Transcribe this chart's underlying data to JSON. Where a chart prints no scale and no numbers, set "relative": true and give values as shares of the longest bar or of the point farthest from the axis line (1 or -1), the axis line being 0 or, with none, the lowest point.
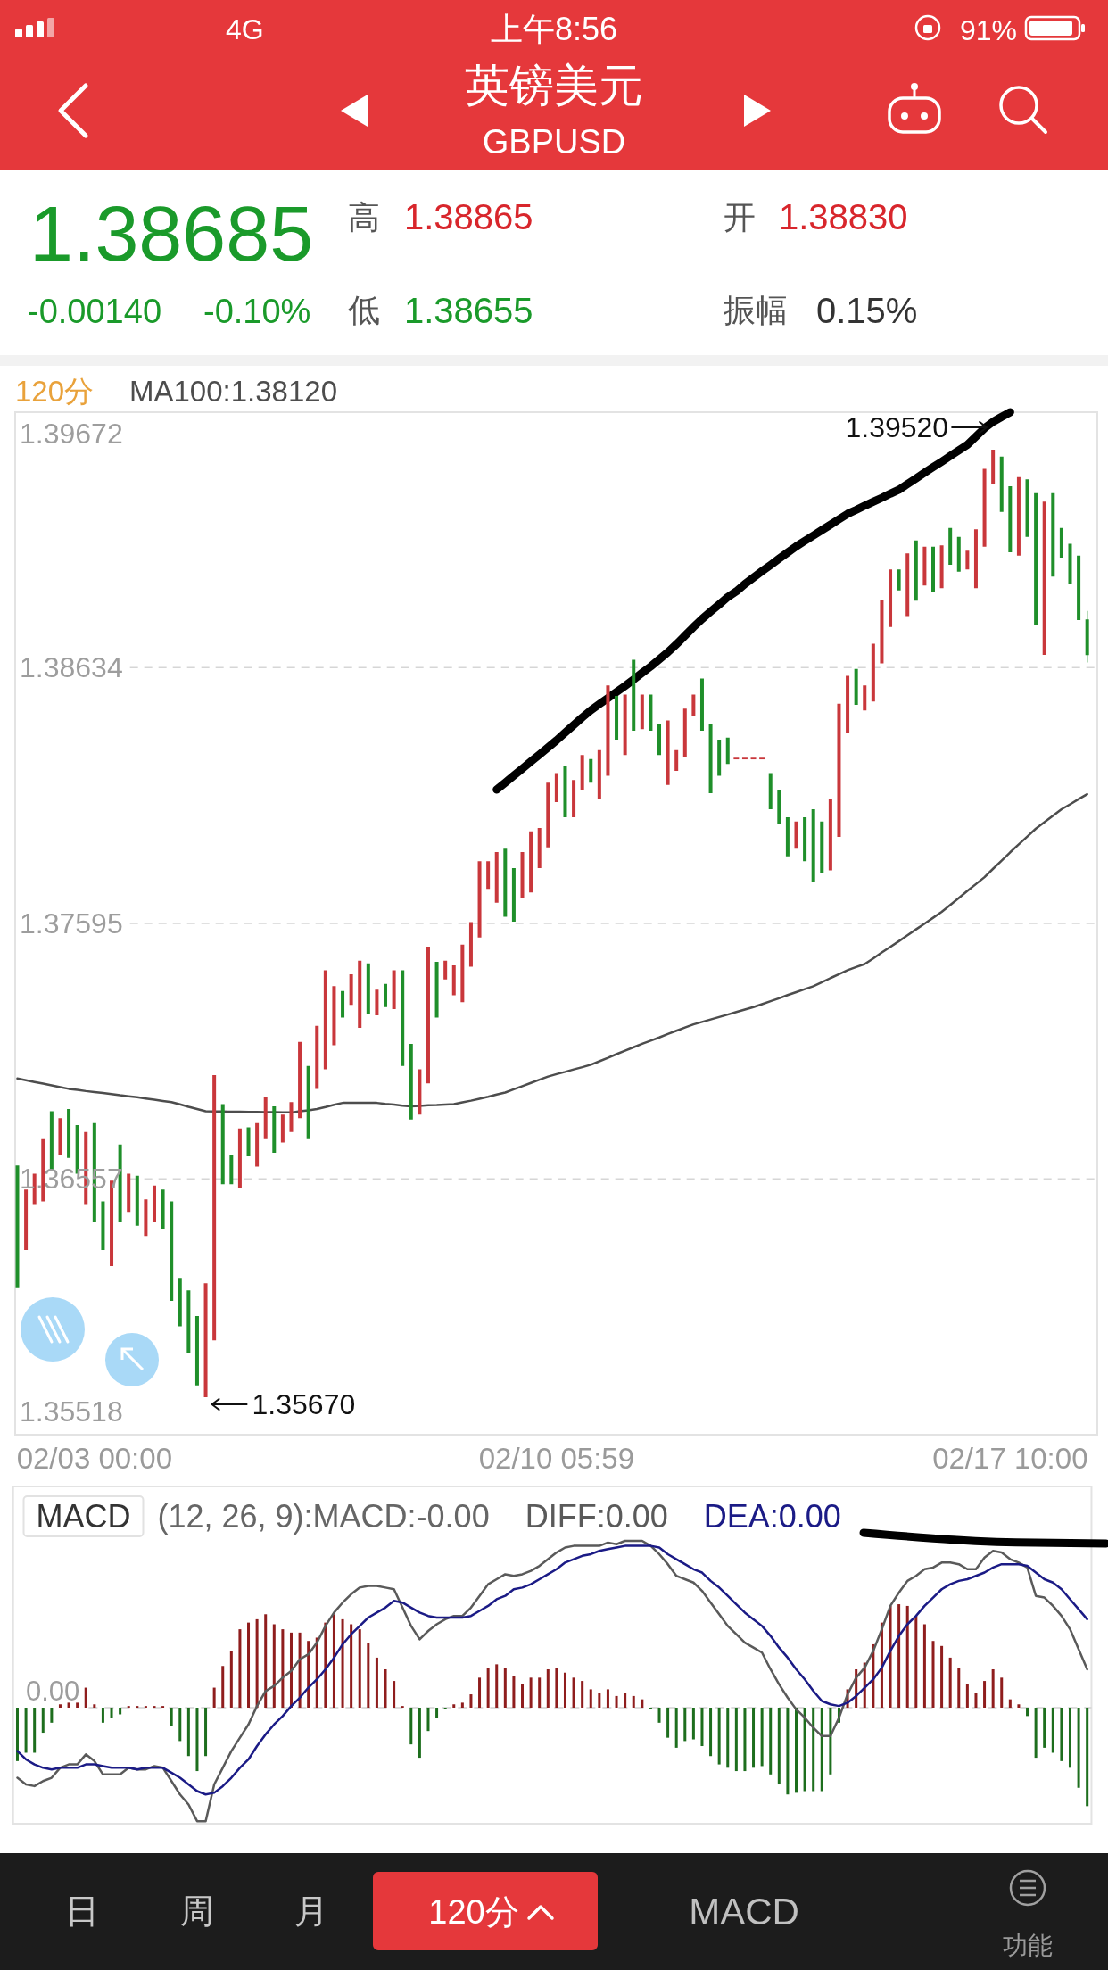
{
  "chart_data": [
    {
      "type": "candlestick",
      "title": "英镑美元",
      "subtitle": "GBPUSD",
      "categories": [
        null,
        null,
        null,
        null,
        null,
        null,
        null,
        null,
        null,
        "02/03 00:00",
        null,
        null,
        null,
        null,
        null,
        null,
        null,
        null,
        null,
        null,
        null,
        null,
        null,
        null,
        null,
        null,
        null,
        null,
        null,
        null,
        null,
        null,
        null,
        null,
        null,
        null,
        null,
        null,
        null,
        null,
        null,
        null,
        null,
        null,
        null,
        null,
        null,
        null,
        null,
        null,
        null,
        null,
        null,
        null,
        null,
        null,
        null,
        null,
        null,
        null,
        null,
        null,
        null,
        "02/10 05:59",
        null,
        null,
        null,
        null,
        null,
        null,
        null,
        null,
        null,
        null,
        null,
        null,
        null,
        null,
        null,
        null,
        null,
        null,
        null,
        null,
        null,
        null,
        null,
        null,
        null,
        null,
        null,
        null,
        null,
        null,
        null,
        null,
        null,
        null,
        null,
        null,
        null,
        null,
        null,
        null,
        null,
        null,
        null,
        null,
        null,
        null,
        null,
        null,
        null,
        null,
        null,
        null,
        "02/17 10:00",
        null,
        null,
        null,
        null,
        null,
        null,
        null,
        null,
        null
      ],
      "ohlc": [
        [
          1.36612,
          1.36612,
          1.36113,
          1.36113
        ],
        [
          1.36268,
          1.36514,
          1.36268,
          1.36514
        ],
        [
          1.36451,
          1.36578,
          1.36451,
          1.36578
        ],
        [
          1.36466,
          1.36719,
          1.36466,
          1.36719
        ],
        [
          1.36832,
          1.36832,
          1.36587,
          1.36587
        ],
        [
          1.36655,
          1.36804,
          1.36655,
          1.36804
        ],
        [
          1.36841,
          1.36841,
          1.36643,
          1.36643
        ],
        [
          1.36776,
          1.36776,
          1.36578,
          1.36578
        ],
        [
          1.36451,
          1.36748,
          1.36451,
          1.36748
        ],
        [
          1.36784,
          1.36784,
          1.36381,
          1.36381
        ],
        [
          1.36466,
          1.36466,
          1.36268,
          1.36268
        ],
        [
          1.36203,
          1.3655,
          1.36203,
          1.3655
        ],
        [
          1.36697,
          1.36697,
          1.36381,
          1.36381
        ],
        [
          1.36423,
          1.36578,
          1.36423,
          1.36578
        ],
        [
          1.3657,
          1.3657,
          1.36367,
          1.36367
        ],
        [
          1.36325,
          1.36474,
          1.36325,
          1.36474
        ],
        [
          1.36381,
          1.3653,
          1.36381,
          1.3653
        ],
        [
          1.36514,
          1.36514,
          1.36353,
          1.36353
        ],
        [
          1.36466,
          1.36466,
          1.36062,
          1.36062
        ],
        [
          1.36155,
          1.36155,
          1.35958,
          1.35958
        ],
        [
          1.36104,
          1.36104,
          1.35851,
          1.35851
        ],
        [
          1.36,
          1.36,
          1.35718,
          1.35718
        ],
        [
          1.3567,
          1.36133,
          1.3567,
          1.36133
        ],
        [
          1.35901,
          1.36979,
          1.35901,
          1.36979
        ],
        [
          1.36861,
          1.36861,
          1.36536,
          1.36536
        ],
        [
          1.36655,
          1.36655,
          1.36536,
          1.36536
        ],
        [
          1.36522,
          1.36762,
          1.36522,
          1.36762
        ],
        [
          1.36767,
          1.36767,
          1.36649,
          1.36649
        ],
        [
          1.36607,
          1.36784,
          1.36607,
          1.36784
        ],
        [
          1.36719,
          1.36889,
          1.36719,
          1.36889
        ],
        [
          1.36852,
          1.36852,
          1.36663,
          1.36663
        ],
        [
          1.36705,
          1.36818,
          1.36705,
          1.36818
        ],
        [
          1.36748,
          1.36869,
          1.36748,
          1.36869
        ],
        [
          1.36804,
          1.37114,
          1.36804,
          1.37114
        ],
        [
          1.37016,
          1.37016,
          1.36719,
          1.36719
        ],
        [
          1.36923,
          1.37179,
          1.36923,
          1.37179
        ],
        [
          1.37002,
          1.37405,
          1.37002,
          1.37405
        ],
        [
          1.371,
          1.3734,
          1.371,
          1.3734
        ],
        [
          1.3732,
          1.3732,
          1.37213,
          1.37213
        ],
        [
          1.37264,
          1.37388,
          1.37264,
          1.37388
        ],
        [
          1.37171,
          1.37444,
          1.37171,
          1.37444
        ],
        [
          1.37433,
          1.37433,
          1.37227,
          1.37227
        ],
        [
          1.37222,
          1.37326,
          1.37222,
          1.37326
        ],
        [
          1.37349,
          1.37349,
          1.37255,
          1.37255
        ],
        [
          1.37247,
          1.37405,
          1.37247,
          1.37405
        ],
        [
          1.37405,
          1.37405,
          1.37016,
          1.37016
        ],
        [
          1.37106,
          1.37106,
          1.36798,
          1.36798
        ],
        [
          1.36818,
          1.37002,
          1.36818,
          1.37002
        ],
        [
          1.36945,
          1.37501,
          1.36945,
          1.37501
        ],
        [
          1.37439,
          1.37439,
          1.37213,
          1.37213
        ],
        [
          1.37368,
          1.37444,
          1.37368,
          1.37444
        ],
        [
          1.37303,
          1.37425,
          1.37303,
          1.37425
        ],
        [
          1.37275,
          1.37509,
          1.37275,
          1.37509
        ],
        [
          1.37419,
          1.376,
          1.37419,
          1.376
        ],
        [
          1.37538,
          1.37848,
          1.37538,
          1.37848
        ],
        [
          1.37735,
          1.37848,
          1.37735,
          1.37848
        ],
        [
          1.37679,
          1.37885,
          1.37679,
          1.37885
        ],
        [
          1.37899,
          1.37899,
          1.37622,
          1.37622
        ],
        [
          1.3782,
          1.3782,
          1.37602,
          1.37602
        ],
        [
          1.37698,
          1.37885,
          1.37698,
          1.37885
        ],
        [
          1.37721,
          1.37969,
          1.37721,
          1.37969
        ],
        [
          1.3782,
          1.37983,
          1.3782,
          1.37983
        ],
        [
          1.37904,
          1.38167,
          1.37904,
          1.38167
        ],
        [
          1.38088,
          1.38206,
          1.38088,
          1.38206
        ],
        [
          1.38234,
          1.38234,
          1.38026,
          1.38026
        ],
        [
          1.38026,
          1.38178,
          1.38026,
          1.38178
        ],
        [
          1.38138,
          1.38279,
          1.38138,
          1.38279
        ],
        [
          1.38263,
          1.38263,
          1.38167,
          1.38167
        ],
        [
          1.38102,
          1.38299,
          1.38102,
          1.38299
        ],
        [
          1.38195,
          1.38562,
          1.38195,
          1.38562
        ],
        [
          1.38519,
          1.38519,
          1.38342,
          1.38342
        ],
        [
          1.38279,
          1.38525,
          1.38279,
          1.38525
        ],
        [
          1.38666,
          1.38666,
          1.38378,
          1.38378
        ],
        [
          1.38384,
          1.38525,
          1.38384,
          1.38525
        ],
        [
          1.38525,
          1.38525,
          1.38378,
          1.38378
        ],
        [
          1.38406,
          1.38406,
          1.38279,
          1.38279
        ],
        [
          1.38158,
          1.3842,
          1.38158,
          1.3842
        ],
        [
          1.38215,
          1.38299,
          1.38215,
          1.38299
        ],
        [
          1.38271,
          1.38468,
          1.38271,
          1.38468
        ],
        [
          1.3844,
          1.38525,
          1.3844,
          1.38525
        ],
        [
          1.3859,
          1.3859,
          1.38378,
          1.38378
        ],
        [
          1.38406,
          1.38406,
          1.38124,
          1.38124
        ],
        [
          1.38342,
          1.38342,
          1.38195,
          1.38195
        ],
        [
          1.3835,
          1.3835,
          1.38243,
          1.38243
        ],
        [
          1.38265,
          1.38265,
          1.38265,
          1.38265
        ],
        [
          1.38265,
          1.38265,
          1.38265,
          1.38265
        ],
        [
          1.38265,
          1.38265,
          1.38265,
          1.38265
        ],
        [
          1.38265,
          1.38265,
          1.38265,
          1.38265
        ],
        [
          1.38206,
          1.38206,
          1.38059,
          1.38059
        ],
        [
          1.38138,
          1.38138,
          1.37997,
          1.37997
        ],
        [
          1.38026,
          1.38026,
          1.37868,
          1.37868
        ],
        [
          1.37899,
          1.38009,
          1.37899,
          1.38009
        ],
        [
          1.38026,
          1.38026,
          1.37848,
          1.37848
        ],
        [
          1.38059,
          1.38059,
          1.37763,
          1.37763
        ],
        [
          1.38009,
          1.38009,
          1.378,
          1.378
        ],
        [
          1.37811,
          1.38102,
          1.37811,
          1.38102
        ],
        [
          1.37947,
          1.38488,
          1.37947,
          1.38488
        ],
        [
          1.3837,
          1.38601,
          1.3837,
          1.38601
        ],
        [
          1.38629,
          1.38629,
          1.38483,
          1.38483
        ],
        [
          1.3846,
          1.38562,
          1.3846,
          1.38562
        ],
        [
          1.38497,
          1.38731,
          1.38497,
          1.38731
        ],
        [
          1.38652,
          1.38911,
          1.38652,
          1.38911
        ],
        [
          1.38799,
          1.39033,
          1.38799,
          1.39033
        ],
        [
          1.39033,
          1.39033,
          1.38948,
          1.38948
        ],
        [
          1.38844,
          1.39098,
          1.38844,
          1.39098
        ],
        [
          1.39151,
          1.39151,
          1.38906,
          1.38906
        ],
        [
          1.38968,
          1.39126,
          1.38968,
          1.39126
        ],
        [
          1.39126,
          1.39126,
          1.38942,
          1.38942
        ],
        [
          1.38957,
          1.39131,
          1.38957,
          1.39131
        ],
        [
          1.39202,
          1.39202,
          1.39052,
          1.39052
        ],
        [
          1.39165,
          1.39165,
          1.39024,
          1.39024
        ],
        [
          1.39033,
          1.39109,
          1.39033,
          1.39109
        ],
        [
          1.38957,
          1.39196,
          1.38957,
          1.39196
        ],
        [
          1.39126,
          1.39442,
          1.39126,
          1.39442
        ],
        [
          1.3938,
          1.3952,
          1.3938,
          1.3952
        ],
        [
          1.39492,
          1.39492,
          1.39267,
          1.39267
        ],
        [
          1.39371,
          1.39371,
          1.39103,
          1.39103
        ],
        [
          1.39089,
          1.39408,
          1.39089,
          1.39408
        ],
        [
          1.39399,
          1.39399,
          1.39165,
          1.39165
        ],
        [
          1.39343,
          1.39343,
          1.38807,
          1.38807
        ],
        [
          1.38686,
          1.39309,
          1.38686,
          1.39309
        ],
        [
          1.39343,
          1.39343,
          1.39004,
          1.39004
        ],
        [
          1.39202,
          1.39202,
          1.39081,
          1.39081
        ],
        [
          1.39137,
          1.39137,
          1.38976,
          1.38976
        ],
        [
          1.39089,
          1.39089,
          1.38827,
          1.38827
        ],
        [
          1.3883,
          1.38865,
          1.38655,
          1.38685
        ]
      ],
      "colors": [
        "#1f8f2a",
        "#c9373b",
        "#c9373b",
        "#c9373b",
        "#1f8f2a",
        "#c9373b",
        "#1f8f2a",
        "#1f8f2a",
        "#c9373b",
        "#1f8f2a",
        "#1f8f2a",
        "#c9373b",
        "#1f8f2a",
        "#c9373b",
        "#1f8f2a",
        "#c9373b",
        "#c9373b",
        "#1f8f2a",
        "#1f8f2a",
        "#1f8f2a",
        "#1f8f2a",
        "#1f8f2a",
        "#c9373b",
        "#c9373b",
        "#1f8f2a",
        "#1f8f2a",
        "#c9373b",
        "#1f8f2a",
        "#c9373b",
        "#c9373b",
        "#1f8f2a",
        "#c9373b",
        "#c9373b",
        "#c9373b",
        "#1f8f2a",
        "#c9373b",
        "#c9373b",
        "#c9373b",
        "#1f8f2a",
        "#c9373b",
        "#c9373b",
        "#1f8f2a",
        "#c9373b",
        "#1f8f2a",
        "#c9373b",
        "#1f8f2a",
        "#1f8f2a",
        "#c9373b",
        "#c9373b",
        "#1f8f2a",
        "#c9373b",
        "#c9373b",
        "#c9373b",
        "#c9373b",
        "#c9373b",
        "#c9373b",
        "#c9373b",
        "#1f8f2a",
        "#1f8f2a",
        "#c9373b",
        "#c9373b",
        "#c9373b",
        "#c9373b",
        "#c9373b",
        "#1f8f2a",
        "#c9373b",
        "#c9373b",
        "#1f8f2a",
        "#c9373b",
        "#c9373b",
        "#1f8f2a",
        "#c9373b",
        "#1f8f2a",
        "#c9373b",
        "#1f8f2a",
        "#1f8f2a",
        "#c9373b",
        "#c9373b",
        "#c9373b",
        "#c9373b",
        "#1f8f2a",
        "#1f8f2a",
        "#1f8f2a",
        "#1f8f2a",
        "#c9373b",
        "#c9373b",
        "#c9373b",
        "#c9373b",
        "#1f8f2a",
        "#1f8f2a",
        "#1f8f2a",
        "#c9373b",
        "#1f8f2a",
        "#1f8f2a",
        "#1f8f2a",
        "#c9373b",
        "#c9373b",
        "#c9373b",
        "#1f8f2a",
        "#c9373b",
        "#c9373b",
        "#c9373b",
        "#c9373b",
        "#1f8f2a",
        "#c9373b",
        "#1f8f2a",
        "#c9373b",
        "#1f8f2a",
        "#c9373b",
        "#1f8f2a",
        "#1f8f2a",
        "#c9373b",
        "#c9373b",
        "#c9373b",
        "#c9373b",
        "#1f8f2a",
        "#1f8f2a",
        "#c9373b",
        "#1f8f2a",
        "#1f8f2a",
        "#c9373b",
        "#1f8f2a",
        "#1f8f2a",
        "#1f8f2a",
        "#1f8f2a",
        "#1f8f2a"
      ],
      "ylim": [
        1.35518,
        1.39672
      ],
      "yticks": [
        1.35518,
        1.36557,
        1.37595,
        1.38634,
        1.39672
      ],
      "grid": "y",
      "legend": "top left",
      "series": [
        {
          "type": "line",
          "name": "MA100:1.38120",
          "color": "#4d4d4d",
          "values": [
            1.36965,
            1.36958,
            1.36951,
            1.36944,
            1.36937,
            1.3693,
            1.36923,
            1.36919,
            1.36914,
            1.3691,
            1.36906,
            1.36902,
            1.36897,
            1.36893,
            1.36889,
            1.36884,
            1.36879,
            1.36874,
            1.36869,
            1.3686,
            1.3685,
            1.36841,
            1.36832,
            1.36831,
            1.36831,
            1.3683,
            1.3683,
            1.36829,
            1.36829,
            1.36828,
            1.36828,
            1.36827,
            1.36827,
            1.36832,
            1.36836,
            1.36841,
            1.36849,
            1.36858,
            1.36866,
            1.36866,
            1.36866,
            1.36866,
            1.36866,
            1.36862,
            1.36859,
            1.36855,
            1.36852,
            1.36854,
            1.36856,
            1.36857,
            1.36859,
            1.36861,
            1.36868,
            1.36875,
            1.36883,
            1.36891,
            1.369,
            1.36908,
            1.36921,
            1.36934,
            1.36947,
            1.3696,
            1.36973,
            1.36983,
            1.36992,
            1.37002,
            1.37011,
            1.37021,
            1.37035,
            1.37049,
            1.37064,
            1.37078,
            1.37092,
            1.37106,
            1.37119,
            1.37132,
            1.37146,
            1.37159,
            1.37172,
            1.37185,
            1.37195,
            1.37205,
            1.37215,
            1.37225,
            1.37235,
            1.37245,
            1.37255,
            1.37267,
            1.37279,
            1.37291,
            1.37304,
            1.37316,
            1.37328,
            1.3734,
            1.37356,
            1.37373,
            1.37389,
            1.37405,
            1.37418,
            1.3743,
            1.37453,
            1.37477,
            1.375,
            1.37523,
            1.37547,
            1.37571,
            1.37594,
            1.37618,
            1.37642,
            1.3767,
            1.37698,
            1.37727,
            1.37755,
            1.37783,
            1.37817,
            1.3785,
            1.37884,
            1.37916,
            1.37948,
            1.3798,
            1.38006,
            1.38033,
            1.38059,
            1.38079,
            1.381,
            1.3812
          ]
        },
        {
          "type": "line",
          "color": "#000000",
          "values": [
            null,
            null,
            null,
            null,
            null,
            null,
            null,
            null,
            null,
            null,
            null,
            null,
            null,
            null,
            null,
            null,
            null,
            null,
            null,
            null,
            null,
            null,
            null,
            null,
            null,
            null,
            null,
            null,
            null,
            null,
            null,
            null,
            null,
            null,
            null,
            null,
            null,
            null,
            null,
            null,
            null,
            null,
            null,
            null,
            null,
            null,
            null,
            null,
            null,
            null,
            null,
            null,
            null,
            null,
            null,
            null,
            1.38139,
            1.38167,
            1.38196,
            1.38224,
            1.38253,
            1.38281,
            1.3831,
            1.38339,
            1.3837,
            1.38401,
            1.38432,
            1.38461,
            1.38486,
            1.3851,
            1.38535,
            1.3856,
            1.38586,
            1.38613,
            1.38639,
            1.38668,
            1.38697,
            1.38729,
            1.38764,
            1.38799,
            1.38832,
            1.38862,
            1.38891,
            1.38921,
            1.38944,
            1.38974,
            1.39,
            1.39026,
            1.39051,
            1.39077,
            1.39102,
            1.39127,
            1.39149,
            1.39171,
            1.39193,
            1.39215,
            1.39237,
            1.39259,
            1.39275,
            1.39292,
            1.39308,
            1.39324,
            1.39341,
            1.39357,
            1.3938,
            1.39403,
            1.39426,
            1.39449,
            1.39471,
            1.39494,
            1.39517,
            1.3954,
            1.39573,
            1.39607,
            1.39633,
            1.39653,
            1.39672,
            null,
            null,
            null,
            null,
            null,
            null,
            null,
            null,
            null
          ]
        }
      ],
      "annotations": [
        "4G",
        "上午8:56",
        "91%",
        "1.38685",
        "高",
        "1.38865",
        "开",
        "1.38830",
        "-0.00140",
        "-0.10%",
        "低",
        "1.38655",
        "振幅",
        "0.15%",
        "120分",
        "1.39520",
        "1.35670"
      ]
    },
    {
      "type": "bar",
      "title": "MACD",
      "subtitle": "(12, 26, 9):MACD:-0.00",
      "categories": [
        null,
        null,
        null,
        null,
        null,
        null,
        null,
        null,
        null,
        null,
        null,
        null,
        null,
        null,
        null,
        null,
        null,
        null,
        null,
        null,
        null,
        null,
        null,
        null,
        null,
        null,
        null,
        null,
        null,
        null,
        null,
        null,
        null,
        null,
        null,
        null,
        null,
        null,
        null,
        null,
        null,
        null,
        null,
        null,
        null,
        null,
        null,
        null,
        null,
        null,
        null,
        null,
        null,
        null,
        null,
        null,
        null,
        null,
        null,
        null,
        null,
        null,
        null,
        null,
        null,
        null,
        null,
        null,
        null,
        null,
        null,
        null,
        null,
        null,
        null,
        null,
        null,
        null,
        null,
        null,
        null,
        null,
        null,
        null,
        null,
        null,
        null,
        null,
        null,
        null,
        null,
        null,
        null,
        null,
        null,
        null,
        null,
        null,
        null,
        null,
        null,
        null,
        null,
        null,
        null,
        null,
        null,
        null,
        null,
        null,
        null,
        null,
        null,
        null,
        null,
        null,
        null,
        null,
        null,
        null,
        null,
        null,
        null,
        null,
        null,
        null
      ],
      "relative": true,
      "ref_lines": [
        {
          "axis": "y",
          "value": 0,
          "label": "0.00",
          "color": "#d2d2d2",
          "line_style": "dashed"
        }
      ],
      "series": [
        {
          "values": [
            -0.32,
            -0.27,
            -0.27,
            -0.15,
            -0.09,
            0.02,
            0.03,
            0.03,
            0.12,
            0.02,
            -0.09,
            -0.06,
            -0.04,
            0.01,
            0.01,
            0.01,
            0.01,
            0.01,
            -0.11,
            -0.2,
            -0.29,
            -0.38,
            -0.29,
            0.12,
            0.25,
            0.34,
            0.47,
            0.51,
            0.53,
            0.56,
            0.5,
            0.47,
            0.45,
            0.45,
            0.4,
            0.42,
            0.51,
            0.56,
            0.53,
            0.5,
            0.47,
            0.39,
            0.3,
            0.23,
            0.16,
            0.01,
            -0.22,
            -0.3,
            -0.14,
            -0.06,
            -0.01,
            0.02,
            0.03,
            0.08,
            0.18,
            0.24,
            0.26,
            0.24,
            0.19,
            0.14,
            0.18,
            0.18,
            0.23,
            0.24,
            0.21,
            0.18,
            0.16,
            0.11,
            0.09,
            0.11,
            0.07,
            0.09,
            0.07,
            0.05,
            -0.01,
            -0.09,
            -0.18,
            -0.24,
            -0.2,
            -0.19,
            -0.23,
            -0.29,
            -0.34,
            -0.36,
            -0.38,
            -0.38,
            -0.36,
            -0.35,
            -0.4,
            -0.46,
            -0.52,
            -0.51,
            -0.5,
            -0.5,
            -0.5,
            -0.4,
            -0.09,
            0.11,
            0.23,
            0.27,
            0.38,
            0.51,
            0.61,
            0.62,
            0.61,
            0.55,
            0.5,
            0.4,
            0.37,
            0.3,
            0.24,
            0.14,
            0.09,
            0.16,
            0.23,
            0.18,
            0.05,
            0.02,
            -0.05,
            -0.3,
            -0.24,
            -0.27,
            -0.32,
            -0.36,
            -0.48,
            -0.59
          ],
          "colors": [
            "#1d6e1d",
            "#1d6e1d",
            "#1d6e1d",
            "#1d6e1d",
            "#1d6e1d",
            "#8f1d1d",
            "#8f1d1d",
            "#8f1d1d",
            "#8f1d1d",
            "#8f1d1d",
            "#1d6e1d",
            "#1d6e1d",
            "#1d6e1d",
            "#8f1d1d",
            "#8f1d1d",
            "#8f1d1d",
            "#8f1d1d",
            "#8f1d1d",
            "#1d6e1d",
            "#1d6e1d",
            "#1d6e1d",
            "#1d6e1d",
            "#1d6e1d",
            "#8f1d1d",
            "#8f1d1d",
            "#8f1d1d",
            "#8f1d1d",
            "#8f1d1d",
            "#8f1d1d",
            "#8f1d1d",
            "#8f1d1d",
            "#8f1d1d",
            "#8f1d1d",
            "#8f1d1d",
            "#8f1d1d",
            "#8f1d1d",
            "#8f1d1d",
            "#8f1d1d",
            "#8f1d1d",
            "#8f1d1d",
            "#8f1d1d",
            "#8f1d1d",
            "#8f1d1d",
            "#8f1d1d",
            "#8f1d1d",
            "#8f1d1d",
            "#1d6e1d",
            "#1d6e1d",
            "#1d6e1d",
            "#1d6e1d",
            "#1d6e1d",
            "#8f1d1d",
            "#8f1d1d",
            "#8f1d1d",
            "#8f1d1d",
            "#8f1d1d",
            "#8f1d1d",
            "#8f1d1d",
            "#8f1d1d",
            "#8f1d1d",
            "#8f1d1d",
            "#8f1d1d",
            "#8f1d1d",
            "#8f1d1d",
            "#8f1d1d",
            "#8f1d1d",
            "#8f1d1d",
            "#8f1d1d",
            "#8f1d1d",
            "#8f1d1d",
            "#8f1d1d",
            "#8f1d1d",
            "#8f1d1d",
            "#8f1d1d",
            "#1d6e1d",
            "#1d6e1d",
            "#1d6e1d",
            "#1d6e1d",
            "#1d6e1d",
            "#1d6e1d",
            "#1d6e1d",
            "#1d6e1d",
            "#1d6e1d",
            "#1d6e1d",
            "#1d6e1d",
            "#1d6e1d",
            "#1d6e1d",
            "#1d6e1d",
            "#1d6e1d",
            "#1d6e1d",
            "#1d6e1d",
            "#1d6e1d",
            "#1d6e1d",
            "#1d6e1d",
            "#1d6e1d",
            "#1d6e1d",
            "#1d6e1d",
            "#8f1d1d",
            "#8f1d1d",
            "#8f1d1d",
            "#8f1d1d",
            "#8f1d1d",
            "#8f1d1d",
            "#8f1d1d",
            "#8f1d1d",
            "#8f1d1d",
            "#8f1d1d",
            "#8f1d1d",
            "#8f1d1d",
            "#8f1d1d",
            "#8f1d1d",
            "#8f1d1d",
            "#8f1d1d",
            "#8f1d1d",
            "#8f1d1d",
            "#8f1d1d",
            "#8f1d1d",
            "#8f1d1d",
            "#1d6e1d",
            "#1d6e1d",
            "#1d6e1d",
            "#1d6e1d",
            "#1d6e1d",
            "#1d6e1d",
            "#1d6e1d",
            "#1d6e1d"
          ]
        },
        {
          "type": "line",
          "name": "DIFF:0.00",
          "color": "#5a5a5a",
          "values": [
            -0.42,
            -0.46,
            -0.47,
            -0.44,
            -0.42,
            -0.36,
            -0.34,
            -0.34,
            -0.28,
            -0.32,
            -0.4,
            -0.4,
            -0.4,
            -0.36,
            -0.37,
            -0.37,
            -0.35,
            -0.36,
            -0.44,
            -0.52,
            -0.58,
            -0.68,
            -0.68,
            -0.46,
            -0.36,
            -0.26,
            -0.18,
            -0.1,
            0.01,
            0.1,
            0.13,
            0.18,
            0.22,
            0.29,
            0.32,
            0.39,
            0.49,
            0.57,
            0.63,
            0.68,
            0.72,
            0.73,
            0.73,
            0.72,
            0.71,
            0.6,
            0.49,
            0.41,
            0.46,
            0.5,
            0.53,
            0.55,
            0.55,
            0.6,
            0.67,
            0.74,
            0.77,
            0.8,
            0.79,
            0.8,
            0.82,
            0.85,
            0.89,
            0.93,
            0.96,
            0.97,
            0.97,
            0.97,
            0.97,
            0.99,
            0.98,
            1,
            1,
            1,
            0.97,
            0.92,
            0.86,
            0.79,
            0.77,
            0.75,
            0.7,
            0.63,
            0.56,
            0.49,
            0.44,
            0.39,
            0.36,
            0.33,
            0.23,
            0.14,
            0.06,
            -0.01,
            -0.06,
            -0.12,
            -0.17,
            -0.17,
            -0.06,
            0.08,
            0.18,
            0.24,
            0.34,
            0.47,
            0.61,
            0.69,
            0.76,
            0.79,
            0.83,
            0.84,
            0.87,
            0.87,
            0.86,
            0.83,
            0.83,
            0.9,
            0.94,
            0.93,
            0.89,
            0.87,
            0.84,
            0.67,
            0.66,
            0.61,
            0.55,
            0.47,
            0.35,
            0.23
          ]
        },
        {
          "type": "line",
          "name": "DEA:0.00",
          "color": "#1b1b86",
          "values": [
            -0.26,
            -0.31,
            -0.34,
            -0.36,
            -0.37,
            -0.36,
            -0.36,
            -0.36,
            -0.34,
            -0.34,
            -0.35,
            -0.36,
            -0.36,
            -0.36,
            -0.37,
            -0.36,
            -0.36,
            -0.36,
            -0.39,
            -0.42,
            -0.46,
            -0.5,
            -0.52,
            -0.51,
            -0.47,
            -0.42,
            -0.36,
            -0.31,
            -0.23,
            -0.16,
            -0.1,
            -0.05,
            0.01,
            0.06,
            0.12,
            0.17,
            0.23,
            0.3,
            0.38,
            0.44,
            0.49,
            0.54,
            0.57,
            0.6,
            0.64,
            0.63,
            0.6,
            0.57,
            0.55,
            0.54,
            0.54,
            0.54,
            0.54,
            0.55,
            0.58,
            0.61,
            0.65,
            0.67,
            0.71,
            0.72,
            0.74,
            0.77,
            0.8,
            0.83,
            0.87,
            0.89,
            0.91,
            0.92,
            0.94,
            0.95,
            0.96,
            0.97,
            0.97,
            0.97,
            0.97,
            0.96,
            0.92,
            0.89,
            0.86,
            0.83,
            0.81,
            0.76,
            0.72,
            0.67,
            0.62,
            0.57,
            0.53,
            0.49,
            0.43,
            0.36,
            0.3,
            0.23,
            0.17,
            0.1,
            0.04,
            0.02,
            0.01,
            0.03,
            0.07,
            0.12,
            0.17,
            0.24,
            0.34,
            0.43,
            0.5,
            0.55,
            0.61,
            0.66,
            0.71,
            0.74,
            0.76,
            0.77,
            0.79,
            0.81,
            0.84,
            0.86,
            0.86,
            0.86,
            0.85,
            0.81,
            0.77,
            0.75,
            0.71,
            0.65,
            0.59,
            0.53
          ]
        }
      ],
      "annotations": [
        "日",
        "周",
        "月",
        "120分",
        "MACD",
        "功能"
      ]
    }
  ]
}
